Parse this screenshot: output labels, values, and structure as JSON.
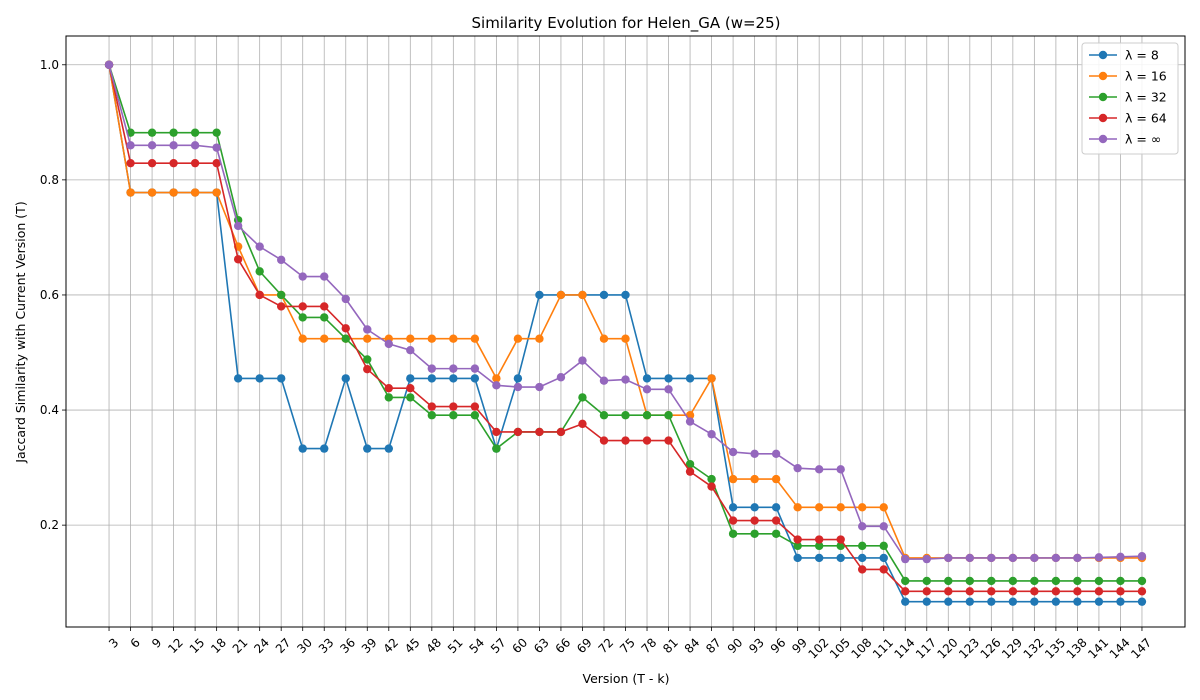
{
  "chart_data": {
    "type": "line",
    "title": "Similarity Evolution for Helen_GA (w=25)",
    "xlabel": "Version (T - k)",
    "ylabel": "Jaccard Similarity with Current Version (T)",
    "x": [
      3,
      6,
      9,
      12,
      15,
      18,
      21,
      24,
      27,
      30,
      33,
      36,
      39,
      42,
      45,
      48,
      51,
      54,
      57,
      60,
      63,
      66,
      69,
      72,
      75,
      78,
      81,
      84,
      87,
      90,
      93,
      96,
      99,
      102,
      105,
      108,
      111,
      114,
      117,
      120,
      123,
      126,
      129,
      132,
      135,
      138,
      141,
      144,
      147
    ],
    "yticks": [
      0.2,
      0.4,
      0.6,
      0.8,
      1.0
    ],
    "ytick_labels": [
      "0.2",
      "0.4",
      "0.6",
      "0.8",
      "1.0"
    ],
    "ylim": [
      0.023,
      1.05
    ],
    "xlim": [
      -3.0,
      153.0
    ],
    "grid": true,
    "legend_position": "top-right",
    "series": [
      {
        "name": "λ = 8",
        "color": "#1f77b4",
        "values": [
          1.0,
          0.778,
          0.778,
          0.778,
          0.778,
          0.778,
          0.455,
          0.455,
          0.455,
          0.333,
          0.333,
          0.455,
          0.333,
          0.333,
          0.455,
          0.455,
          0.455,
          0.455,
          0.333,
          0.455,
          0.6,
          0.6,
          0.6,
          0.6,
          0.6,
          0.455,
          0.455,
          0.455,
          0.455,
          0.231,
          0.231,
          0.231,
          0.143,
          0.143,
          0.143,
          0.143,
          0.143,
          0.067,
          0.067,
          0.067,
          0.067,
          0.067,
          0.067,
          0.067,
          0.067,
          0.067,
          0.067,
          0.067,
          0.067
        ]
      },
      {
        "name": "λ = 16",
        "color": "#ff7f0e",
        "values": [
          1.0,
          0.778,
          0.778,
          0.778,
          0.778,
          0.778,
          0.684,
          0.6,
          0.6,
          0.524,
          0.524,
          0.524,
          0.524,
          0.524,
          0.524,
          0.524,
          0.524,
          0.524,
          0.455,
          0.524,
          0.524,
          0.6,
          0.6,
          0.524,
          0.524,
          0.391,
          0.391,
          0.391,
          0.455,
          0.28,
          0.28,
          0.28,
          0.231,
          0.231,
          0.231,
          0.231,
          0.231,
          0.143,
          0.143,
          0.143,
          0.143,
          0.143,
          0.143,
          0.143,
          0.143,
          0.143,
          0.143,
          0.143,
          0.143
        ]
      },
      {
        "name": "λ = 32",
        "color": "#2ca02c",
        "values": [
          1.0,
          0.882,
          0.882,
          0.882,
          0.882,
          0.882,
          0.73,
          0.641,
          0.6,
          0.561,
          0.561,
          0.524,
          0.488,
          0.422,
          0.422,
          0.391,
          0.391,
          0.391,
          0.333,
          0.362,
          0.362,
          0.362,
          0.422,
          0.391,
          0.391,
          0.391,
          0.391,
          0.306,
          0.28,
          0.185,
          0.185,
          0.185,
          0.164,
          0.164,
          0.164,
          0.164,
          0.164,
          0.103,
          0.103,
          0.103,
          0.103,
          0.103,
          0.103,
          0.103,
          0.103,
          0.103,
          0.103,
          0.103,
          0.103
        ]
      },
      {
        "name": "λ = 64",
        "color": "#d62728",
        "values": [
          1.0,
          0.829,
          0.829,
          0.829,
          0.829,
          0.829,
          0.662,
          0.6,
          0.58,
          0.58,
          0.58,
          0.542,
          0.471,
          0.438,
          0.438,
          0.406,
          0.406,
          0.406,
          0.362,
          0.362,
          0.362,
          0.362,
          0.376,
          0.347,
          0.347,
          0.347,
          0.347,
          0.293,
          0.267,
          0.208,
          0.208,
          0.208,
          0.175,
          0.175,
          0.175,
          0.123,
          0.123,
          0.085,
          0.085,
          0.085,
          0.085,
          0.085,
          0.085,
          0.085,
          0.085,
          0.085,
          0.085,
          0.085,
          0.085
        ]
      },
      {
        "name": "λ = ∞",
        "color": "#9467bd",
        "values": [
          1.0,
          0.86,
          0.86,
          0.86,
          0.86,
          0.856,
          0.72,
          0.684,
          0.661,
          0.632,
          0.632,
          0.593,
          0.54,
          0.515,
          0.504,
          0.472,
          0.472,
          0.472,
          0.443,
          0.44,
          0.44,
          0.457,
          0.486,
          0.451,
          0.453,
          0.436,
          0.436,
          0.38,
          0.358,
          0.327,
          0.324,
          0.324,
          0.299,
          0.297,
          0.297,
          0.198,
          0.198,
          0.141,
          0.141,
          0.143,
          0.143,
          0.143,
          0.143,
          0.143,
          0.143,
          0.143,
          0.144,
          0.145,
          0.146
        ]
      }
    ]
  }
}
